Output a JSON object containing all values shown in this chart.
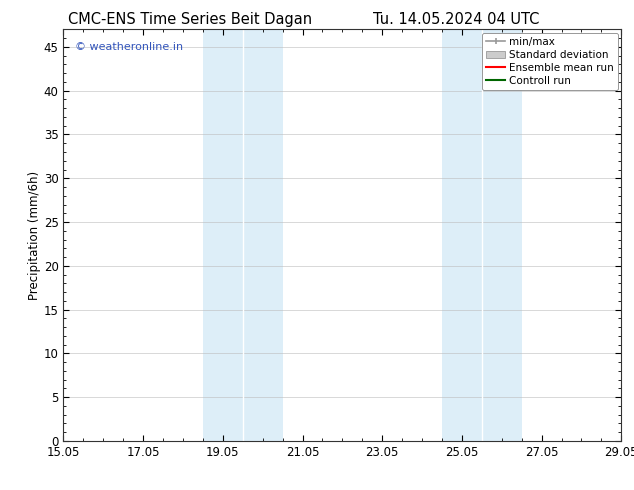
{
  "title_left": "CMC-ENS Time Series Beit Dagan",
  "title_right": "Tu. 14.05.2024 04 UTC",
  "ylabel": "Precipitation (mm/6h)",
  "watermark": "© weatheronline.in",
  "watermark_color": "#3355bb",
  "xlim": [
    0,
    14
  ],
  "ylim": [
    0,
    47
  ],
  "yticks": [
    0,
    5,
    10,
    15,
    20,
    25,
    30,
    35,
    40,
    45
  ],
  "xtick_labels": [
    "15.05",
    "17.05",
    "19.05",
    "21.05",
    "23.05",
    "25.05",
    "27.05",
    "29.05"
  ],
  "xtick_positions": [
    0,
    2,
    4,
    6,
    8,
    10,
    12,
    14
  ],
  "shaded_regions": [
    {
      "x_start": 3.5,
      "x_end": 4.5
    },
    {
      "x_start": 4.5,
      "x_end": 5.5
    },
    {
      "x_start": 9.5,
      "x_end": 10.5
    },
    {
      "x_start": 10.5,
      "x_end": 11.5
    }
  ],
  "shaded_color": "#ddeef8",
  "shaded_edge_color": "#c0d8ec",
  "background_color": "#ffffff",
  "grid_color": "#bbbbbb",
  "legend_items": [
    {
      "label": "min/max",
      "color": "#999999",
      "type": "errorbar"
    },
    {
      "label": "Standard deviation",
      "color": "#cccccc",
      "type": "bar"
    },
    {
      "label": "Ensemble mean run",
      "color": "#ff0000",
      "type": "line"
    },
    {
      "label": "Controll run",
      "color": "#006600",
      "type": "line"
    }
  ],
  "title_fontsize": 10.5,
  "tick_fontsize": 8.5,
  "legend_fontsize": 7.5,
  "ylabel_fontsize": 8.5
}
